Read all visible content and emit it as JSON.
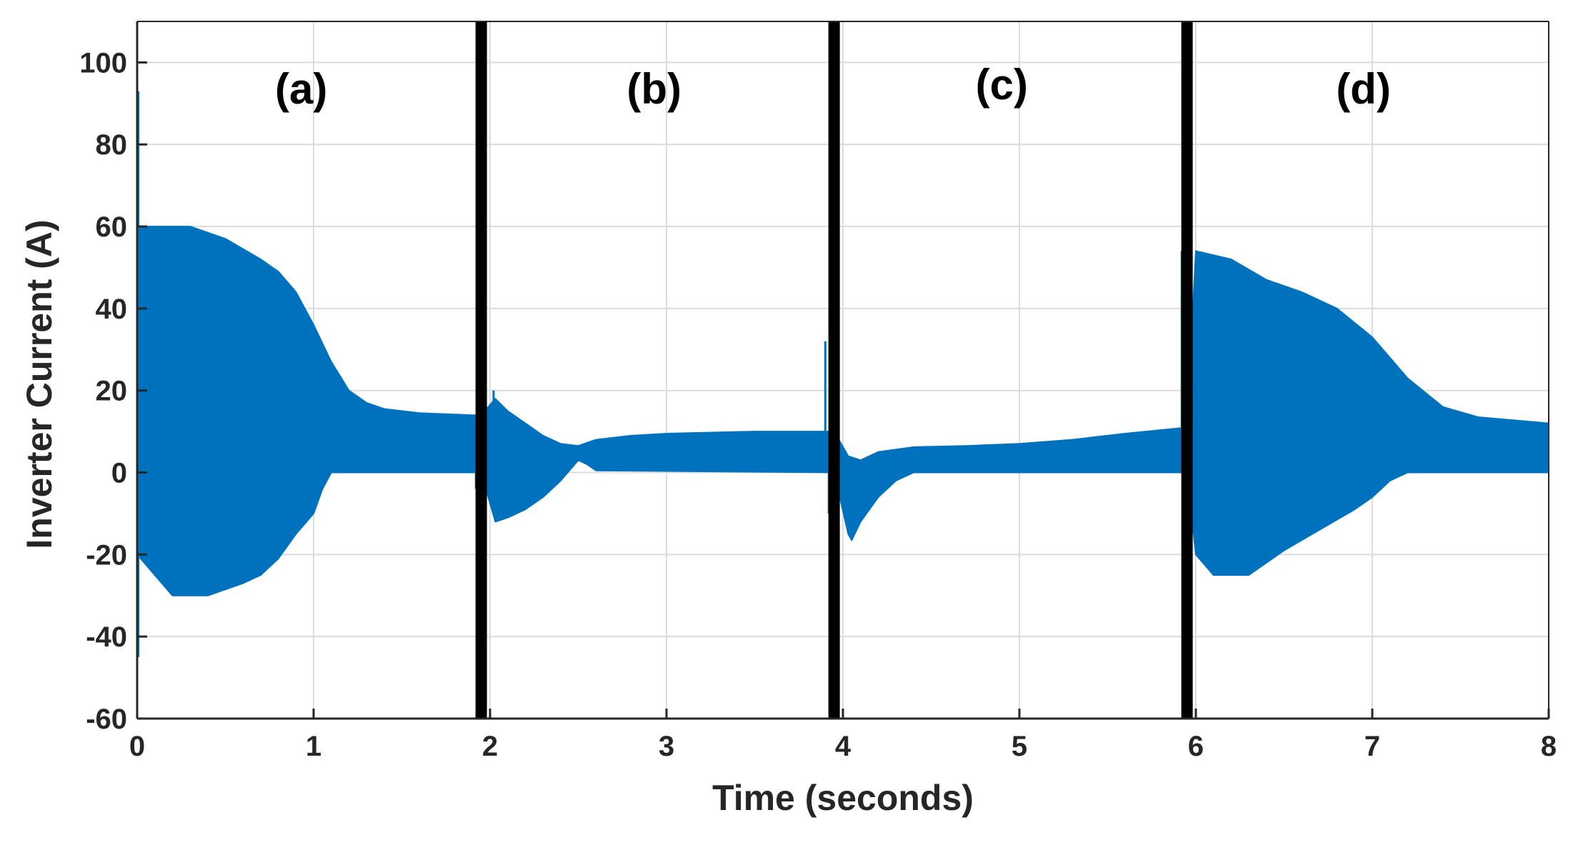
{
  "chart_data": {
    "type": "line",
    "title": "",
    "xlabel": "Time (seconds)",
    "ylabel": "Inverter Current (A)",
    "xlim": [
      0,
      8
    ],
    "ylim": [
      -60,
      110
    ],
    "xticks": [
      0,
      1,
      2,
      3,
      4,
      5,
      6,
      7,
      8
    ],
    "yticks": [
      -60,
      -40,
      -20,
      0,
      20,
      40,
      60,
      80,
      100
    ],
    "grid": true,
    "legend": "none",
    "colors": {
      "signal": "#0072BD",
      "divider": "#000000",
      "grid": "#dcdcdc",
      "axis": "#262626"
    },
    "dividers": [
      1.95,
      3.95,
      5.95
    ],
    "regions": [
      {
        "label": "(a)",
        "x": 0.93,
        "y": 90
      },
      {
        "label": "(b)",
        "x": 2.93,
        "y": 90
      },
      {
        "label": "(c)",
        "x": 4.9,
        "y": 91
      },
      {
        "label": "(d)",
        "x": 6.95,
        "y": 90
      }
    ],
    "series": [
      {
        "kind": "envelope",
        "upper": [
          [
            0,
            60
          ],
          [
            0.3,
            60
          ],
          [
            0.5,
            57
          ],
          [
            0.7,
            52
          ],
          [
            0.8,
            49
          ],
          [
            0.9,
            44
          ],
          [
            1.0,
            36
          ],
          [
            1.1,
            27
          ],
          [
            1.2,
            20
          ],
          [
            1.3,
            17
          ],
          [
            1.4,
            15.5
          ],
          [
            1.6,
            14.5
          ],
          [
            1.9,
            14
          ],
          [
            1.95,
            14
          ],
          [
            2.03,
            18
          ],
          [
            2.1,
            15
          ],
          [
            2.2,
            12
          ],
          [
            2.3,
            9
          ],
          [
            2.4,
            7
          ],
          [
            2.5,
            6.5
          ],
          [
            2.6,
            8
          ],
          [
            2.8,
            9
          ],
          [
            3.0,
            9.5
          ],
          [
            3.5,
            10
          ],
          [
            3.95,
            10
          ],
          [
            4.03,
            4
          ],
          [
            4.1,
            3
          ],
          [
            4.2,
            5
          ],
          [
            4.4,
            6.2
          ],
          [
            4.7,
            6.5
          ],
          [
            5.0,
            7
          ],
          [
            5.3,
            8
          ],
          [
            5.6,
            9.5
          ],
          [
            5.95,
            11
          ],
          [
            6.0,
            54
          ],
          [
            6.2,
            52
          ],
          [
            6.4,
            47
          ],
          [
            6.6,
            44
          ],
          [
            6.8,
            40
          ],
          [
            7.0,
            33
          ],
          [
            7.1,
            28
          ],
          [
            7.2,
            23
          ],
          [
            7.4,
            16
          ],
          [
            7.6,
            13.5
          ],
          [
            8.0,
            12
          ]
        ],
        "lower": [
          [
            0,
            -20
          ],
          [
            0.2,
            -30
          ],
          [
            0.4,
            -30
          ],
          [
            0.6,
            -27
          ],
          [
            0.7,
            -25
          ],
          [
            0.8,
            -21
          ],
          [
            0.9,
            -15
          ],
          [
            1.0,
            -10
          ],
          [
            1.05,
            -4
          ],
          [
            1.1,
            0
          ],
          [
            1.95,
            0
          ],
          [
            2.03,
            -12
          ],
          [
            2.1,
            -11
          ],
          [
            2.2,
            -9
          ],
          [
            2.3,
            -6
          ],
          [
            2.4,
            -2
          ],
          [
            2.5,
            3
          ],
          [
            2.55,
            2
          ],
          [
            2.6,
            0.5
          ],
          [
            3.95,
            0
          ],
          [
            4.03,
            -15
          ],
          [
            4.05,
            -16.5
          ],
          [
            4.1,
            -12
          ],
          [
            4.2,
            -6
          ],
          [
            4.3,
            -2
          ],
          [
            4.4,
            0
          ],
          [
            5.95,
            0
          ],
          [
            6.0,
            -20
          ],
          [
            6.1,
            -25
          ],
          [
            6.3,
            -25
          ],
          [
            6.5,
            -19
          ],
          [
            6.7,
            -14
          ],
          [
            6.9,
            -9
          ],
          [
            7.0,
            -6
          ],
          [
            7.1,
            -2
          ],
          [
            7.2,
            0
          ],
          [
            8.0,
            0
          ]
        ]
      },
      {
        "kind": "spikes",
        "values": [
          [
            0.0,
            93
          ],
          [
            0.0,
            -45
          ],
          [
            1.92,
            -4
          ],
          [
            2.02,
            20
          ],
          [
            3.9,
            32
          ],
          [
            3.92,
            -10
          ],
          [
            5.92,
            54
          ],
          [
            5.93,
            -20
          ]
        ]
      }
    ]
  }
}
